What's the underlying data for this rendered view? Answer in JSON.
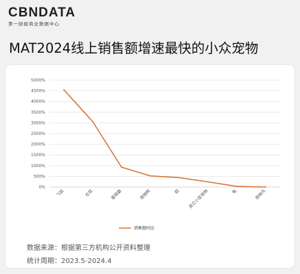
{
  "brand": {
    "logo": "CBNDATA",
    "subtitle": "第一财经商业数据中心"
  },
  "title": "MAT2024线上销售额增速最快的小众宠物",
  "footer": {
    "source": "数据来源：根据第三方机构公开资料整理",
    "period": "统计周期：2023.5-2024.4"
  },
  "colors": {
    "line": "#d9733b",
    "grid": "#e4e4e4",
    "axis": "#c8c8c8"
  },
  "chart_data": {
    "type": "line",
    "categories": [
      "飞鼠",
      "仓鼠",
      "蜜袋鼯",
      "宠物鸭",
      "貂",
      "其它小型宠物",
      "龟",
      "宠物鸟"
    ],
    "series": [
      {
        "name": "销售额同比",
        "values": [
          4550,
          3060,
          930,
          520,
          440,
          240,
          30,
          0
        ]
      }
    ],
    "ylim": [
      0,
      5000
    ],
    "yticks": [
      "0%",
      "500%",
      "1000%",
      "1500%",
      "2000%",
      "2500%",
      "3000%",
      "3500%",
      "4000%",
      "4500%",
      "5000%"
    ],
    "y_unit": "%",
    "grid": true,
    "legend": "bottom"
  }
}
